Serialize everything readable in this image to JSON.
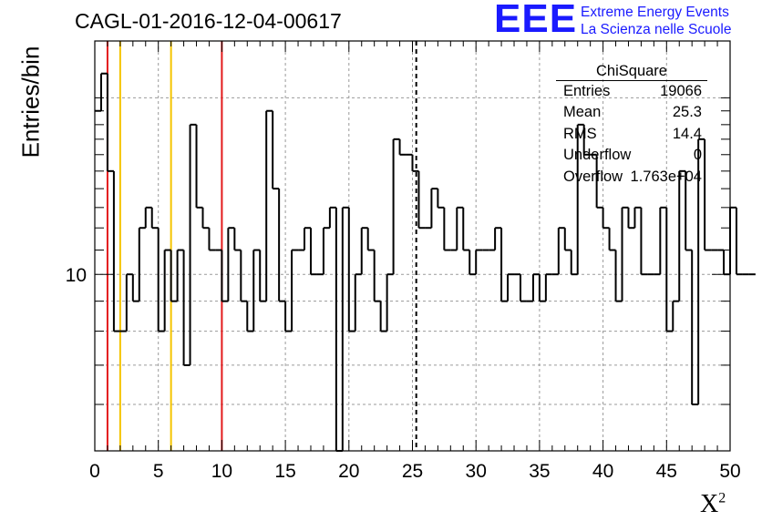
{
  "chart_data": {
    "type": "step",
    "title": "CAGL-01-2016-12-04-00617",
    "xlabel": "X",
    "xlabel_superscript": "2",
    "ylabel": "Entries/bin",
    "xlim": [
      0,
      50
    ],
    "ylim": [
      5,
      25
    ],
    "y_scale": "log",
    "grid": true,
    "x_ticks": [
      "0",
      "5",
      "10",
      "15",
      "20",
      "25",
      "30",
      "35",
      "40",
      "45",
      "50"
    ],
    "y_ticks": [
      "10"
    ],
    "bin_width": 0.5,
    "bin_start": 0,
    "values": [
      19,
      22,
      15,
      8,
      8,
      10,
      9,
      12,
      13,
      12,
      8,
      11,
      9,
      11,
      7,
      18,
      13,
      12,
      11,
      11,
      9,
      12,
      11,
      9,
      8,
      11,
      9,
      19,
      14,
      9,
      8,
      11,
      11,
      12,
      10,
      10,
      12,
      13,
      5,
      13,
      8,
      10,
      12,
      11,
      9,
      8,
      10,
      17,
      16,
      16,
      15,
      12,
      12,
      14,
      13,
      11,
      11,
      13,
      11,
      10,
      11,
      11,
      11,
      12,
      9,
      10,
      10,
      9,
      9,
      10,
      9,
      10,
      10,
      12,
      11,
      10,
      18,
      16,
      16,
      13,
      12,
      11,
      9,
      13,
      12,
      13,
      10,
      10,
      10,
      13,
      8,
      9,
      15,
      11,
      6,
      17,
      11,
      11,
      11,
      10,
      13,
      10,
      10,
      10
    ],
    "vertical_lines": [
      {
        "x": 1,
        "color": "#e31a1c",
        "style": "solid"
      },
      {
        "x": 2,
        "color": "#f5c400",
        "style": "solid"
      },
      {
        "x": 6,
        "color": "#f5c400",
        "style": "solid"
      },
      {
        "x": 10,
        "color": "#e31a1c",
        "style": "solid"
      },
      {
        "x": 25.3,
        "color": "#000000",
        "style": "dashed"
      }
    ],
    "stats_box": {
      "name": "ChiSquare",
      "rows": [
        {
          "label": "Entries",
          "value": "19066"
        },
        {
          "label": "Mean",
          "value": "25.3"
        },
        {
          "label": "RMS",
          "value": "14.4"
        },
        {
          "label": "Underflow",
          "value": "0"
        },
        {
          "label": "Overflow",
          "value": "1.763e+04"
        }
      ]
    }
  },
  "logo": {
    "mark": "EEE",
    "line1": "Extreme Energy Events",
    "line2": "La Scienza nelle Scuole",
    "color": "#1a1aff"
  }
}
